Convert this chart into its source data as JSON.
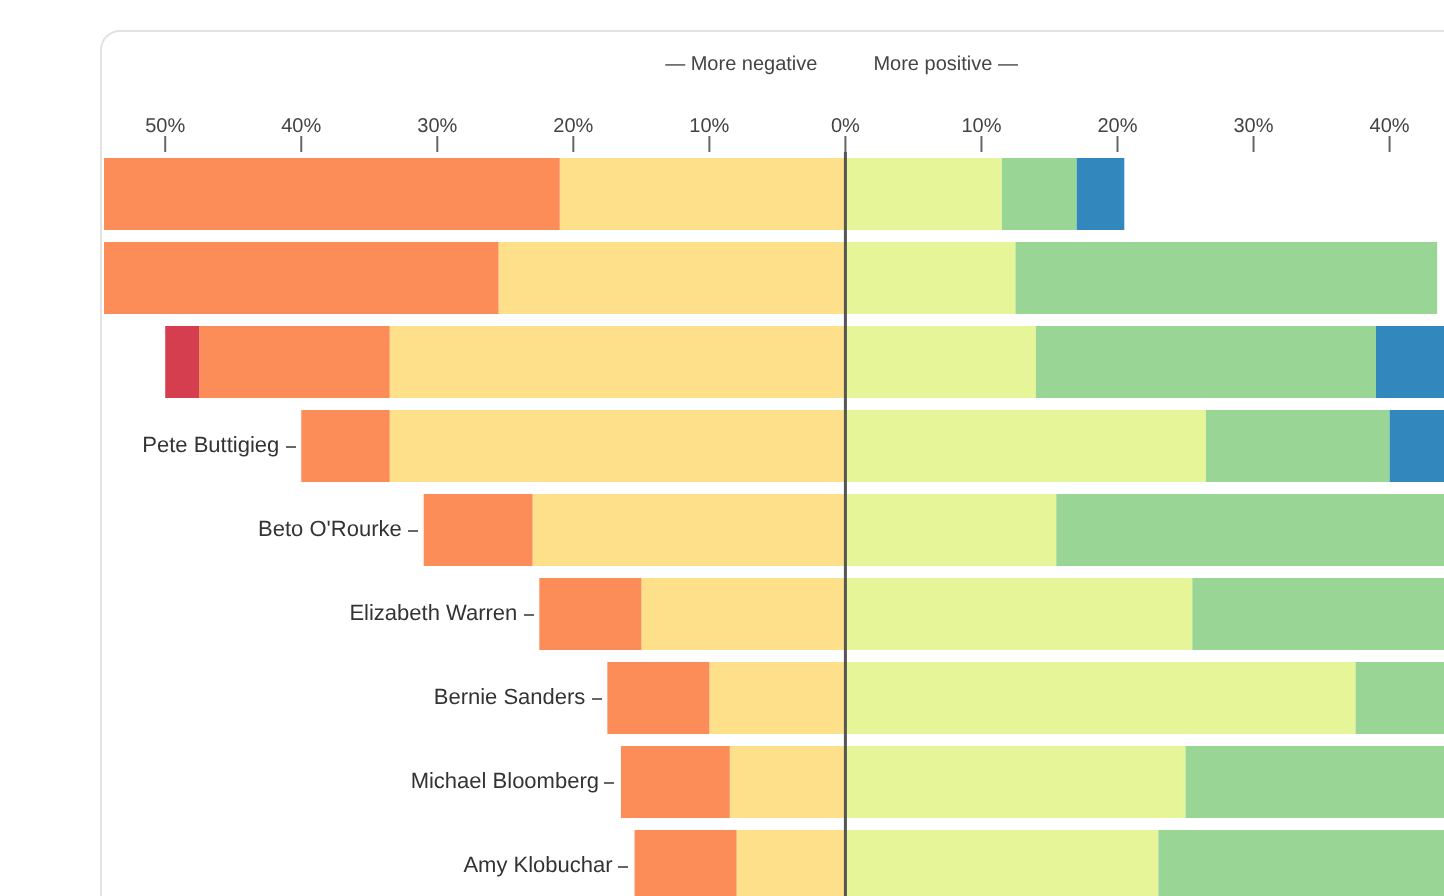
{
  "chart_data": {
    "type": "bar",
    "orientation": "horizontal",
    "stacked": true,
    "annotations": [
      "— More negative",
      "More positive —"
    ],
    "categories": [
      null,
      null,
      null,
      "Pete Buttigieg",
      "Beto O'Rourke",
      "Elizabeth Warren",
      "Bernie Sanders",
      "Michael Bloomberg",
      "Amy Klobuchar"
    ],
    "series": [
      {
        "color": "#fee08b",
        "values": [
          -21,
          -25.5,
          -33.5,
          -33.5,
          -23,
          -15,
          -10,
          -8.5,
          -8
        ]
      },
      {
        "color": "#fc8d59",
        "values": [
          -33.5,
          -29,
          -14,
          -6.5,
          -8,
          -7.5,
          -7.5,
          -8,
          -7.5
        ]
      },
      {
        "color": "#d53e4f",
        "values": [
          null,
          null,
          -2.5,
          null,
          null,
          null,
          null,
          null,
          null
        ]
      },
      {
        "color": "#e6f598",
        "values": [
          11.5,
          12.5,
          14,
          26.5,
          15.5,
          25.5,
          37.5,
          25,
          23
        ]
      },
      {
        "color": "#99d594",
        "values": [
          5.5,
          31,
          25,
          13.5,
          28.5,
          18.5,
          6.5,
          19,
          21
        ]
      },
      {
        "color": "#3288bd",
        "values": [
          3.5,
          null,
          5,
          4,
          null,
          null,
          null,
          null,
          null
        ]
      }
    ],
    "xlim": [
      -54.5,
      44
    ],
    "xticks": [
      {
        "value": -50,
        "label": "50%"
      },
      {
        "value": -40,
        "label": "40%"
      },
      {
        "value": -30,
        "label": "30%"
      },
      {
        "value": -20,
        "label": "20%"
      },
      {
        "value": -10,
        "label": "10%"
      },
      {
        "value": 0,
        "label": "0%"
      },
      {
        "value": 10,
        "label": "10%"
      },
      {
        "value": 20,
        "label": "20%"
      },
      {
        "value": 30,
        "label": "30%"
      },
      {
        "value": 40,
        "label": "40%"
      }
    ],
    "ref_lines": [
      {
        "axis": "x",
        "value": 0,
        "color": "#555555"
      }
    ],
    "grid": false,
    "legend": false
  }
}
